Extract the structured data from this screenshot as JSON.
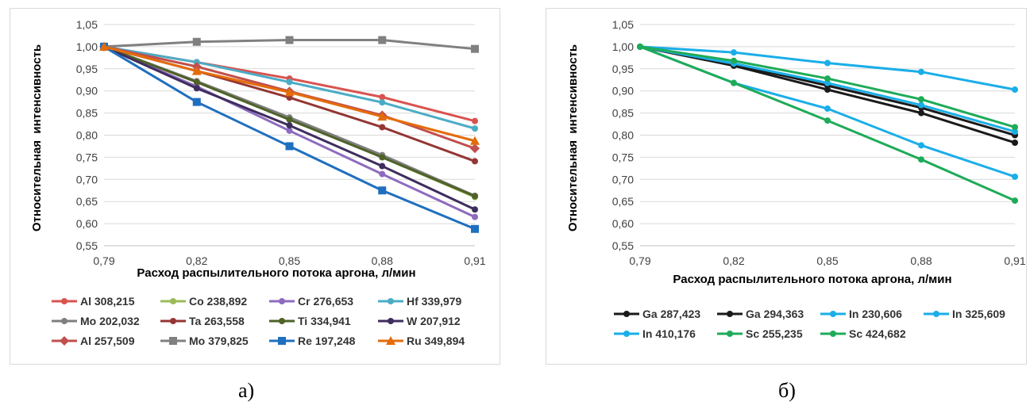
{
  "chart_data": [
    {
      "type": "line",
      "panel_label": "а)",
      "title": "",
      "xlabel": "Расход распылительного потока аргона, л/мин",
      "ylabel": "Относительная  интенсивность",
      "x": [
        "0,79",
        "0,82",
        "0,85",
        "0,88",
        "0,91"
      ],
      "yticks": [
        "0,55",
        "0,60",
        "0,65",
        "0,70",
        "0,75",
        "0,80",
        "0,85",
        "0,90",
        "0,95",
        "1,00",
        "1,05"
      ],
      "ylim": [
        0.55,
        1.05
      ],
      "grid": true,
      "legend_position": "bottom",
      "series": [
        {
          "name": "Al 308,215",
          "color": "#d9534f",
          "marker": "circle",
          "values": [
            1.0,
            0.965,
            0.928,
            0.886,
            0.832
          ]
        },
        {
          "name": "Co 238,892",
          "color": "#9bbb59",
          "marker": "circle",
          "values": [
            1.0,
            0.92,
            0.838,
            0.75,
            0.66
          ]
        },
        {
          "name": "Cr 276,653",
          "color": "#8e6bbf",
          "marker": "circle",
          "values": [
            1.0,
            0.91,
            0.81,
            0.712,
            0.615
          ]
        },
        {
          "name": "Hf 339,979",
          "color": "#4bacc6",
          "marker": "circle",
          "values": [
            1.0,
            0.965,
            0.92,
            0.874,
            0.815
          ]
        },
        {
          "name": "Mo 202,032",
          "color": "#7f7f7f",
          "marker": "circle",
          "values": [
            1.0,
            0.922,
            0.84,
            0.755,
            0.663
          ]
        },
        {
          "name": "Ta 263,558",
          "color": "#943634",
          "marker": "circle",
          "values": [
            1.0,
            0.945,
            0.885,
            0.818,
            0.741
          ]
        },
        {
          "name": "Ti 334,941",
          "color": "#4f6228",
          "marker": "circle",
          "values": [
            1.0,
            0.92,
            0.835,
            0.75,
            0.662
          ]
        },
        {
          "name": "W 207,912",
          "color": "#3f2d5e",
          "marker": "circle",
          "values": [
            1.0,
            0.906,
            0.822,
            0.73,
            0.632
          ]
        },
        {
          "name": "Al 257,509",
          "color": "#c0504d",
          "marker": "diamond",
          "values": [
            1.0,
            0.955,
            0.899,
            0.845,
            0.77
          ]
        },
        {
          "name": "Mo 379,825",
          "color": "#808080",
          "marker": "square",
          "values": [
            1.0,
            1.011,
            1.015,
            1.015,
            0.995
          ]
        },
        {
          "name": "Re 197,248",
          "color": "#1f6fbf",
          "marker": "square",
          "values": [
            1.0,
            0.875,
            0.775,
            0.675,
            0.588
          ]
        },
        {
          "name": "Ru 349,894",
          "color": "#e46c0a",
          "marker": "triangle",
          "values": [
            1.0,
            0.945,
            0.897,
            0.842,
            0.787
          ]
        }
      ]
    },
    {
      "type": "line",
      "panel_label": "б)",
      "title": "",
      "xlabel": "Расход распылительного потока аргона, л/мин",
      "ylabel": "Относительная  интенсивность",
      "x": [
        "0,79",
        "0,82",
        "0,85",
        "0,88",
        "0,91"
      ],
      "yticks": [
        "0,55",
        "0,60",
        "0,65",
        "0,70",
        "0,75",
        "0,80",
        "0,85",
        "0,90",
        "0,95",
        "1,00",
        "1,05"
      ],
      "ylim": [
        0.55,
        1.05
      ],
      "grid": true,
      "legend_position": "bottom",
      "series": [
        {
          "name": "Ga 287,423",
          "color": "#1a1a1a",
          "marker": "circle",
          "values": [
            1.0,
            0.957,
            0.903,
            0.85,
            0.783
          ]
        },
        {
          "name": "Ga 294,363",
          "color": "#1a1a1a",
          "marker": "circle",
          "values": [
            1.0,
            0.96,
            0.912,
            0.862,
            0.8
          ]
        },
        {
          "name": "In 230,606",
          "color": "#1aaee8",
          "marker": "circle",
          "values": [
            1.0,
            0.987,
            0.963,
            0.943,
            0.903
          ]
        },
        {
          "name": "In 325,609",
          "color": "#1aaee8",
          "marker": "circle",
          "values": [
            1.0,
            0.962,
            0.918,
            0.868,
            0.808
          ]
        },
        {
          "name": "In 410,176",
          "color": "#1aaee8",
          "marker": "circle",
          "values": [
            1.0,
            0.918,
            0.86,
            0.777,
            0.706
          ]
        },
        {
          "name": "Sc 255,235",
          "color": "#1eab58",
          "marker": "circle",
          "values": [
            1.0,
            0.968,
            0.928,
            0.881,
            0.818
          ]
        },
        {
          "name": "Sc 424,682",
          "color": "#1eab58",
          "marker": "circle",
          "values": [
            1.0,
            0.918,
            0.833,
            0.745,
            0.652
          ]
        }
      ]
    }
  ]
}
